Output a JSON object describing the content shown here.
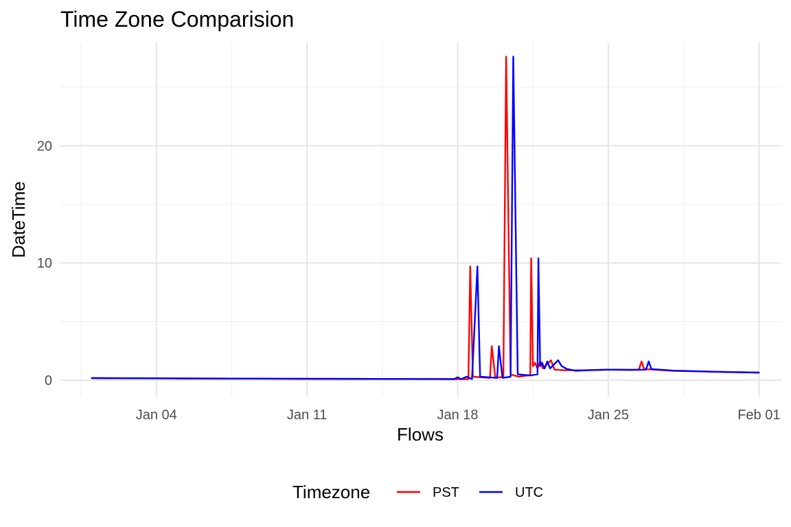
{
  "chart_data": {
    "type": "line",
    "title": "Time Zone Comparision",
    "xlabel": "Flows",
    "ylabel": "DateTime",
    "x_ticks": [
      "2024-01-04",
      "2024-01-11",
      "2024-01-18",
      "2024-01-25",
      "2024-02-01"
    ],
    "x_tick_labels": [
      "Jan 04",
      "Jan 11",
      "Jan 18",
      "Jan 25",
      "Feb 01"
    ],
    "x_minor_ticks": [
      "2023-12-31T12:00",
      "2024-01-07T12:00",
      "2024-01-14T12:00",
      "2024-01-21T12:00",
      "2024-01-28T12:00"
    ],
    "y_ticks": [
      0,
      10,
      20
    ],
    "y_minor_ticks": [
      5,
      15,
      25
    ],
    "xlim": [
      "2023-12-30T13:00",
      "2024-02-02T01:00"
    ],
    "ylim": [
      -1.4,
      28.8
    ],
    "grid": true,
    "legend": {
      "title": "Timezone",
      "position": "bottom"
    },
    "series": [
      {
        "name": "PST",
        "color": "#ff0000",
        "points": [
          [
            "2024-01-01T00:00",
            0.18
          ],
          [
            "2024-01-05T00:00",
            0.15
          ],
          [
            "2024-01-10T00:00",
            0.13
          ],
          [
            "2024-01-14T00:00",
            0.11
          ],
          [
            "2024-01-17T12:00",
            0.09
          ],
          [
            "2024-01-18T12:00",
            0.1
          ],
          [
            "2024-01-18T14:00",
            9.7
          ],
          [
            "2024-01-18T17:00",
            0.3
          ],
          [
            "2024-01-19T12:00",
            0.2
          ],
          [
            "2024-01-19T14:00",
            2.9
          ],
          [
            "2024-01-19T18:00",
            0.2
          ],
          [
            "2024-01-20T03:00",
            0.3
          ],
          [
            "2024-01-20T06:00",
            27.6
          ],
          [
            "2024-01-20T11:00",
            0.5
          ],
          [
            "2024-01-20T20:00",
            0.3
          ],
          [
            "2024-01-21T06:00",
            0.4
          ],
          [
            "2024-01-21T09:00",
            0.45
          ],
          [
            "2024-01-21T10:00",
            10.4
          ],
          [
            "2024-01-21T12:00",
            1.2
          ],
          [
            "2024-01-21T14:00",
            1.5
          ],
          [
            "2024-01-21T17:00",
            1.0
          ],
          [
            "2024-01-21T20:00",
            1.6
          ],
          [
            "2024-01-21T23:00",
            1.0
          ],
          [
            "2024-01-22T08:00",
            1.7
          ],
          [
            "2024-01-22T12:00",
            0.9
          ],
          [
            "2024-01-23T00:00",
            0.85
          ],
          [
            "2024-01-24T00:00",
            0.85
          ],
          [
            "2024-01-25T00:00",
            0.9
          ],
          [
            "2024-01-26T00:00",
            0.88
          ],
          [
            "2024-01-26T10:00",
            0.9
          ],
          [
            "2024-01-26T13:00",
            1.6
          ],
          [
            "2024-01-26T16:00",
            0.95
          ],
          [
            "2024-01-28T00:00",
            0.8
          ],
          [
            "2024-01-30T00:00",
            0.72
          ],
          [
            "2024-02-01T00:00",
            0.65
          ]
        ]
      },
      {
        "name": "UTC",
        "color": "#0000ff",
        "points": [
          [
            "2024-01-01T00:00",
            0.18
          ],
          [
            "2024-01-05T00:00",
            0.15
          ],
          [
            "2024-01-10T00:00",
            0.13
          ],
          [
            "2024-01-14T00:00",
            0.11
          ],
          [
            "2024-01-17T20:00",
            0.1
          ],
          [
            "2024-01-18T00:00",
            0.25
          ],
          [
            "2024-01-18T04:00",
            0.1
          ],
          [
            "2024-01-18T10:00",
            0.3
          ],
          [
            "2024-01-18T16:00",
            0.1
          ],
          [
            "2024-01-18T22:00",
            9.7
          ],
          [
            "2024-01-19T01:00",
            0.3
          ],
          [
            "2024-01-19T20:00",
            0.2
          ],
          [
            "2024-01-19T22:00",
            2.9
          ],
          [
            "2024-01-20T02:00",
            0.2
          ],
          [
            "2024-01-20T11:00",
            0.3
          ],
          [
            "2024-01-20T14:00",
            27.6
          ],
          [
            "2024-01-20T19:00",
            0.5
          ],
          [
            "2024-01-21T09:00",
            0.4
          ],
          [
            "2024-01-21T17:00",
            0.5
          ],
          [
            "2024-01-21T18:00",
            10.4
          ],
          [
            "2024-01-21T20:00",
            1.2
          ],
          [
            "2024-01-21T22:00",
            1.5
          ],
          [
            "2024-01-22T01:00",
            1.0
          ],
          [
            "2024-01-22T04:00",
            1.6
          ],
          [
            "2024-01-22T07:00",
            1.0
          ],
          [
            "2024-01-22T16:00",
            1.7
          ],
          [
            "2024-01-22T20:00",
            1.2
          ],
          [
            "2024-01-23T02:00",
            0.95
          ],
          [
            "2024-01-23T12:00",
            0.8
          ],
          [
            "2024-01-24T00:00",
            0.85
          ],
          [
            "2024-01-25T00:00",
            0.9
          ],
          [
            "2024-01-26T00:00",
            0.88
          ],
          [
            "2024-01-26T18:00",
            0.9
          ],
          [
            "2024-01-26T21:00",
            1.6
          ],
          [
            "2024-01-27T00:00",
            0.95
          ],
          [
            "2024-01-28T00:00",
            0.82
          ],
          [
            "2024-01-30T00:00",
            0.72
          ],
          [
            "2024-02-01T00:00",
            0.65
          ]
        ]
      }
    ]
  }
}
